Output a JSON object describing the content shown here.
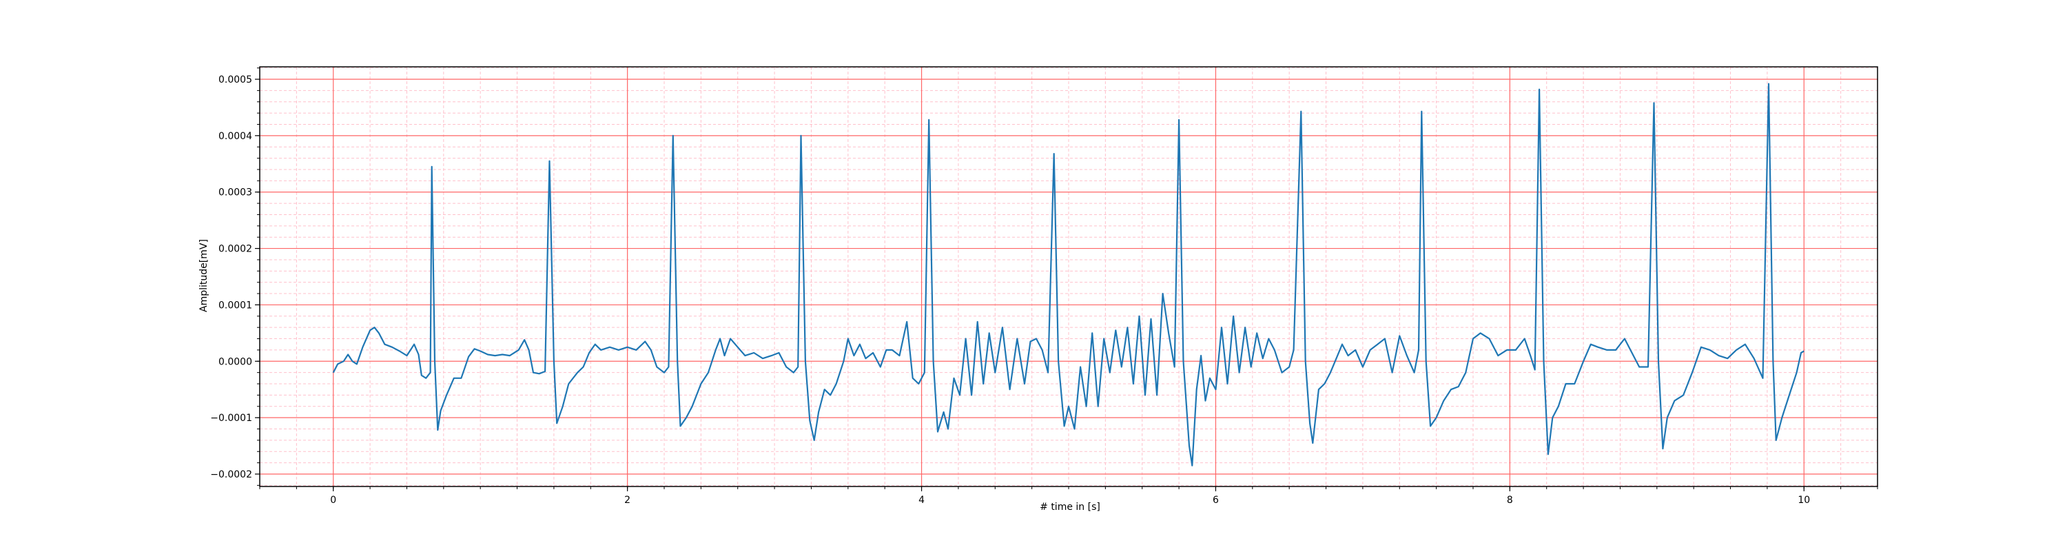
{
  "chart_data": {
    "type": "line",
    "title": "",
    "xlabel": "# time in [s]",
    "ylabel": "Amplitude[mV]",
    "xlim": [
      -0.5,
      10.5
    ],
    "ylim": [
      -0.000222,
      0.000522
    ],
    "xticks": [
      0,
      2,
      4,
      6,
      8,
      10
    ],
    "xtick_labels": [
      "0",
      "2",
      "4",
      "6",
      "8",
      "10"
    ],
    "yticks": [
      -0.0002,
      -0.0001,
      0.0,
      0.0001,
      0.0002,
      0.0003,
      0.0004,
      0.0005
    ],
    "ytick_labels": [
      "−0.0002",
      "−0.0001",
      "0.0000",
      "0.0001",
      "0.0002",
      "0.0003",
      "0.0004",
      "0.0005"
    ],
    "grid": true,
    "minor_grid": true,
    "legend": "none",
    "colors": {
      "line": "#1f77b4",
      "major_grid": "#ff6666",
      "minor_grid": "#ffc0cb",
      "axes": "#000000"
    },
    "series": [
      {
        "points": [
          [
            0.0,
            -2e-05
          ],
          [
            0.03,
            -5e-06
          ],
          [
            0.07,
            0.0
          ],
          [
            0.1,
            1.2e-05
          ],
          [
            0.13,
            0.0
          ],
          [
            0.16,
            -5e-06
          ],
          [
            0.2,
            2.5e-05
          ],
          [
            0.25,
            5.5e-05
          ],
          [
            0.28,
            6e-05
          ],
          [
            0.31,
            5e-05
          ],
          [
            0.35,
            3e-05
          ],
          [
            0.4,
            2.5e-05
          ],
          [
            0.45,
            1.8e-05
          ],
          [
            0.5,
            1e-05
          ],
          [
            0.55,
            3e-05
          ],
          [
            0.58,
            1.2e-05
          ],
          [
            0.6,
            -2.5e-05
          ],
          [
            0.63,
            -3e-05
          ],
          [
            0.66,
            -2e-05
          ],
          [
            0.67,
            0.000345
          ],
          [
            0.69,
            0.0
          ],
          [
            0.71,
            -0.000122
          ],
          [
            0.73,
            -8.8e-05
          ],
          [
            0.77,
            -6e-05
          ],
          [
            0.82,
            -3e-05
          ],
          [
            0.87,
            -3e-05
          ],
          [
            0.92,
            8e-06
          ],
          [
            0.96,
            2.2e-05
          ],
          [
            1.0,
            1.8e-05
          ],
          [
            1.05,
            1.2e-05
          ],
          [
            1.1,
            1e-05
          ],
          [
            1.15,
            1.2e-05
          ],
          [
            1.2,
            1e-05
          ],
          [
            1.26,
            2e-05
          ],
          [
            1.3,
            3.8e-05
          ],
          [
            1.33,
            2e-05
          ],
          [
            1.36,
            -2e-05
          ],
          [
            1.4,
            -2.2e-05
          ],
          [
            1.44,
            -1.8e-05
          ],
          [
            1.47,
            0.000355
          ],
          [
            1.5,
            0.0
          ],
          [
            1.52,
            -0.00011
          ],
          [
            1.56,
            -8e-05
          ],
          [
            1.6,
            -4e-05
          ],
          [
            1.66,
            -2e-05
          ],
          [
            1.7,
            -1e-05
          ],
          [
            1.74,
            1.5e-05
          ],
          [
            1.78,
            3e-05
          ],
          [
            1.82,
            2e-05
          ],
          [
            1.88,
            2.5e-05
          ],
          [
            1.94,
            2e-05
          ],
          [
            2.0,
            2.5e-05
          ],
          [
            2.06,
            2e-05
          ],
          [
            2.12,
            3.5e-05
          ],
          [
            2.16,
            2e-05
          ],
          [
            2.2,
            -1e-05
          ],
          [
            2.25,
            -2e-05
          ],
          [
            2.28,
            -1e-05
          ],
          [
            2.31,
            0.0004
          ],
          [
            2.34,
            0.0
          ],
          [
            2.36,
            -0.000115
          ],
          [
            2.4,
            -0.0001
          ],
          [
            2.44,
            -8e-05
          ],
          [
            2.5,
            -4e-05
          ],
          [
            2.55,
            -2e-05
          ],
          [
            2.6,
            2e-05
          ],
          [
            2.63,
            4e-05
          ],
          [
            2.66,
            1e-05
          ],
          [
            2.7,
            4e-05
          ],
          [
            2.75,
            2.5e-05
          ],
          [
            2.8,
            1e-05
          ],
          [
            2.86,
            1.5e-05
          ],
          [
            2.92,
            5e-06
          ],
          [
            2.98,
            1e-05
          ],
          [
            3.03,
            1.5e-05
          ],
          [
            3.08,
            -1e-05
          ],
          [
            3.13,
            -2e-05
          ],
          [
            3.16,
            -1e-05
          ],
          [
            3.18,
            0.0004
          ],
          [
            3.21,
            0.0
          ],
          [
            3.24,
            -0.000105
          ],
          [
            3.27,
            -0.00014
          ],
          [
            3.3,
            -9e-05
          ],
          [
            3.34,
            -5e-05
          ],
          [
            3.38,
            -6e-05
          ],
          [
            3.42,
            -4e-05
          ],
          [
            3.47,
            0.0
          ],
          [
            3.5,
            4e-05
          ],
          [
            3.54,
            1e-05
          ],
          [
            3.58,
            3e-05
          ],
          [
            3.62,
            5e-06
          ],
          [
            3.67,
            1.5e-05
          ],
          [
            3.72,
            -1e-05
          ],
          [
            3.76,
            2e-05
          ],
          [
            3.8,
            2e-05
          ],
          [
            3.85,
            1e-05
          ],
          [
            3.9,
            7e-05
          ],
          [
            3.94,
            -3e-05
          ],
          [
            3.98,
            -4e-05
          ],
          [
            4.02,
            -2e-05
          ],
          [
            4.05,
            0.000428
          ],
          [
            4.08,
            0.0
          ],
          [
            4.11,
            -0.000125
          ],
          [
            4.15,
            -9e-05
          ],
          [
            4.18,
            -0.00012
          ],
          [
            4.22,
            -3e-05
          ],
          [
            4.26,
            -6e-05
          ],
          [
            4.3,
            4e-05
          ],
          [
            4.34,
            -6e-05
          ],
          [
            4.38,
            7e-05
          ],
          [
            4.42,
            -4e-05
          ],
          [
            4.46,
            5e-05
          ],
          [
            4.5,
            -2e-05
          ],
          [
            4.55,
            6e-05
          ],
          [
            4.6,
            -5e-05
          ],
          [
            4.65,
            4e-05
          ],
          [
            4.7,
            -4e-05
          ],
          [
            4.74,
            3.5e-05
          ],
          [
            4.78,
            4e-05
          ],
          [
            4.82,
            2e-05
          ],
          [
            4.86,
            -2e-05
          ],
          [
            4.9,
            0.000368
          ],
          [
            4.93,
            0.0
          ],
          [
            4.97,
            -0.000115
          ],
          [
            5.0,
            -8e-05
          ],
          [
            5.04,
            -0.00012
          ],
          [
            5.08,
            -1e-05
          ],
          [
            5.12,
            -8e-05
          ],
          [
            5.16,
            5e-05
          ],
          [
            5.2,
            -8e-05
          ],
          [
            5.24,
            4e-05
          ],
          [
            5.28,
            -2e-05
          ],
          [
            5.32,
            5.5e-05
          ],
          [
            5.36,
            -1e-05
          ],
          [
            5.4,
            6e-05
          ],
          [
            5.44,
            -4e-05
          ],
          [
            5.48,
            8e-05
          ],
          [
            5.52,
            -6e-05
          ],
          [
            5.56,
            7.5e-05
          ],
          [
            5.6,
            -6e-05
          ],
          [
            5.64,
            0.00012
          ],
          [
            5.68,
            5e-05
          ],
          [
            5.72,
            -1e-05
          ],
          [
            5.75,
            0.000428
          ],
          [
            5.78,
            0.0
          ],
          [
            5.82,
            -0.00015
          ],
          [
            5.84,
            -0.000185
          ],
          [
            5.87,
            -5e-05
          ],
          [
            5.9,
            1e-05
          ],
          [
            5.93,
            -7e-05
          ],
          [
            5.96,
            -3e-05
          ],
          [
            6.0,
            -5e-05
          ],
          [
            6.04,
            6e-05
          ],
          [
            6.08,
            -4e-05
          ],
          [
            6.12,
            8e-05
          ],
          [
            6.16,
            -2e-05
          ],
          [
            6.2,
            6e-05
          ],
          [
            6.24,
            -1e-05
          ],
          [
            6.28,
            5e-05
          ],
          [
            6.32,
            5e-06
          ],
          [
            6.36,
            4e-05
          ],
          [
            6.4,
            2e-05
          ],
          [
            6.45,
            -2e-05
          ],
          [
            6.5,
            -1e-05
          ],
          [
            6.53,
            2e-05
          ],
          [
            6.58,
            0.000443
          ],
          [
            6.61,
            0.0
          ],
          [
            6.64,
            -0.00011
          ],
          [
            6.66,
            -0.000145
          ],
          [
            6.7,
            -5e-05
          ],
          [
            6.74,
            -4e-05
          ],
          [
            6.78,
            -2e-05
          ],
          [
            6.82,
            5e-06
          ],
          [
            6.86,
            3e-05
          ],
          [
            6.9,
            1e-05
          ],
          [
            6.95,
            2e-05
          ],
          [
            7.0,
            -1e-05
          ],
          [
            7.05,
            2e-05
          ],
          [
            7.1,
            3e-05
          ],
          [
            7.15,
            4e-05
          ],
          [
            7.2,
            -2e-05
          ],
          [
            7.25,
            4.5e-05
          ],
          [
            7.3,
            1e-05
          ],
          [
            7.35,
            -2e-05
          ],
          [
            7.38,
            2e-05
          ],
          [
            7.4,
            0.000443
          ],
          [
            7.43,
            0.0
          ],
          [
            7.46,
            -0.000115
          ],
          [
            7.5,
            -0.0001
          ],
          [
            7.55,
            -7e-05
          ],
          [
            7.6,
            -5e-05
          ],
          [
            7.65,
            -4.5e-05
          ],
          [
            7.7,
            -2e-05
          ],
          [
            7.75,
            4e-05
          ],
          [
            7.8,
            5e-05
          ],
          [
            7.86,
            4e-05
          ],
          [
            7.92,
            1e-05
          ],
          [
            7.98,
            2e-05
          ],
          [
            8.04,
            2e-05
          ],
          [
            8.1,
            4e-05
          ],
          [
            8.14,
            1e-05
          ],
          [
            8.17,
            -1.5e-05
          ],
          [
            8.2,
            0.000482
          ],
          [
            8.23,
            0.0
          ],
          [
            8.26,
            -0.000165
          ],
          [
            8.29,
            -0.0001
          ],
          [
            8.33,
            -8e-05
          ],
          [
            8.38,
            -4e-05
          ],
          [
            8.44,
            -4e-05
          ],
          [
            8.5,
            0.0
          ],
          [
            8.55,
            3e-05
          ],
          [
            8.6,
            2.5e-05
          ],
          [
            8.66,
            2e-05
          ],
          [
            8.72,
            2e-05
          ],
          [
            8.78,
            4e-05
          ],
          [
            8.82,
            2e-05
          ],
          [
            8.88,
            -1e-05
          ],
          [
            8.94,
            -1e-05
          ],
          [
            8.98,
            0.000458
          ],
          [
            9.01,
            0.0
          ],
          [
            9.04,
            -0.000155
          ],
          [
            9.07,
            -0.0001
          ],
          [
            9.12,
            -7e-05
          ],
          [
            9.18,
            -6e-05
          ],
          [
            9.24,
            -2e-05
          ],
          [
            9.3,
            2.5e-05
          ],
          [
            9.36,
            2e-05
          ],
          [
            9.42,
            1e-05
          ],
          [
            9.48,
            5e-06
          ],
          [
            9.54,
            2e-05
          ],
          [
            9.6,
            3e-05
          ],
          [
            9.66,
            5e-06
          ],
          [
            9.72,
            -3e-05
          ],
          [
            9.76,
            0.000492
          ],
          [
            9.79,
            0.0
          ],
          [
            9.81,
            -0.00014
          ],
          [
            9.85,
            -0.0001
          ],
          [
            9.9,
            -6e-05
          ],
          [
            9.95,
            -2e-05
          ],
          [
            9.98,
            1.5e-05
          ],
          [
            10.0,
            1.8e-05
          ]
        ]
      }
    ]
  }
}
